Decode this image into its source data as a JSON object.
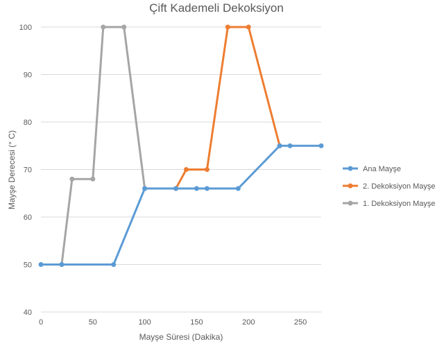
{
  "chart_data": {
    "type": "line",
    "title": "Çift Kademeli Dekoksiyon",
    "xlabel": "Mayşe Süresi (Dakika)",
    "ylabel": "Mayşe Derecesi (° C)",
    "xlim": [
      0,
      270
    ],
    "ylim": [
      40,
      100
    ],
    "xticks": [
      0,
      50,
      100,
      150,
      200,
      250
    ],
    "yticks": [
      40,
      50,
      60,
      70,
      80,
      90,
      100
    ],
    "grid": "horizontal",
    "legend_position": "right",
    "series": [
      {
        "name": "Ana Mayşe",
        "color": "#5B9BD5",
        "points": [
          [
            0,
            50
          ],
          [
            20,
            50
          ],
          [
            70,
            50
          ],
          [
            100,
            66
          ],
          [
            130,
            66
          ],
          [
            150,
            66
          ],
          [
            160,
            66
          ],
          [
            190,
            66
          ],
          [
            230,
            75
          ],
          [
            240,
            75
          ],
          [
            270,
            75
          ]
        ]
      },
      {
        "name": "2. Dekoksiyon Mayşe",
        "color": "#ED7D31",
        "points": [
          [
            130,
            66
          ],
          [
            140,
            70
          ],
          [
            160,
            70
          ],
          [
            180,
            100
          ],
          [
            200,
            100
          ],
          [
            230,
            75
          ]
        ]
      },
      {
        "name": "1. Dekoksiyon Mayşe",
        "color": "#A5A5A5",
        "points": [
          [
            20,
            50
          ],
          [
            30,
            68
          ],
          [
            50,
            68
          ],
          [
            60,
            100
          ],
          [
            80,
            100
          ],
          [
            100,
            66
          ]
        ]
      }
    ]
  }
}
